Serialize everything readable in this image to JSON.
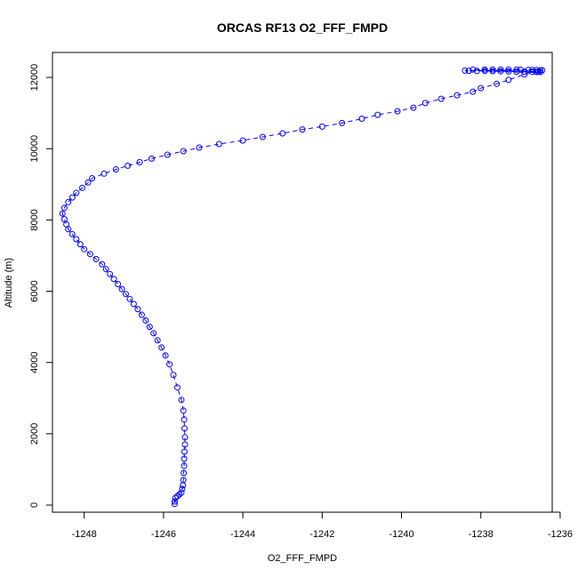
{
  "chart_data": {
    "type": "scatter",
    "title": "ORCAS RF13 O2_FFF_FMPD",
    "xlabel": "O2_FFF_FMPD",
    "ylabel": "Altitude (m)",
    "xlim": [
      -1248.8,
      -1236.2
    ],
    "ylim": [
      -200,
      12700
    ],
    "xticks": [
      -1248,
      -1246,
      -1244,
      -1242,
      -1240,
      -1238,
      -1236
    ],
    "xtick_labels": [
      "-1248",
      "-1246",
      "-1244",
      "-1242",
      "-1240",
      "-1238",
      "-1236"
    ],
    "yticks": [
      0,
      2000,
      4000,
      6000,
      8000,
      10000,
      12000
    ],
    "ytick_labels": [
      "0",
      "2000",
      "4000",
      "6000",
      "8000",
      "10000",
      "12000"
    ],
    "marker": "open-circle",
    "line_style": "dashed",
    "color": "#0000ff",
    "grid": false,
    "series": [
      {
        "x": [
          -1236.5,
          -1236.6,
          -1236.7,
          -1236.9,
          -1237.1,
          -1237.3,
          -1237.5,
          -1237.7,
          -1237.9,
          -1238.1,
          -1238.3,
          -1238.4,
          -1236.45,
          -1236.5,
          -1236.6,
          -1236.7,
          -1236.8,
          -1237.0,
          -1237.1,
          -1237.3,
          -1237.5,
          -1237.7,
          -1237.9,
          -1238.2,
          -1236.55,
          -1236.9,
          -1237.3,
          -1237.6,
          -1238.0,
          -1238.2,
          -1238.6,
          -1239.0,
          -1239.4,
          -1239.7,
          -1240.1,
          -1240.6,
          -1241.0,
          -1241.5,
          -1242.0,
          -1242.5,
          -1243.0,
          -1243.5,
          -1244.0,
          -1244.6,
          -1245.1,
          -1245.5,
          -1245.9,
          -1246.3,
          -1246.6,
          -1246.9,
          -1247.2,
          -1247.5,
          -1247.8,
          -1247.9,
          -1248.05,
          -1248.2,
          -1248.3,
          -1248.4,
          -1248.5,
          -1248.55,
          -1248.5,
          -1248.45,
          -1248.4,
          -1248.3,
          -1248.2,
          -1248.1,
          -1248.0,
          -1247.85,
          -1247.7,
          -1247.55,
          -1247.45,
          -1247.35,
          -1247.25,
          -1247.15,
          -1247.05,
          -1246.95,
          -1246.85,
          -1246.75,
          -1246.65,
          -1246.55,
          -1246.45,
          -1246.35,
          -1246.25,
          -1246.15,
          -1246.05,
          -1245.95,
          -1245.85,
          -1245.75,
          -1245.65,
          -1245.55,
          -1245.5,
          -1245.48,
          -1245.47,
          -1245.46,
          -1245.46,
          -1245.47,
          -1245.48,
          -1245.48,
          -1245.49,
          -1245.5,
          -1245.51,
          -1245.53,
          -1245.55,
          -1245.6,
          -1245.65,
          -1245.7,
          -1245.72,
          -1245.72
        ],
        "y": [
          12150,
          12150,
          12155,
          12160,
          12160,
          12165,
          12170,
          12175,
          12180,
          12180,
          12185,
          12190,
          12200,
          12200,
          12205,
          12210,
          12210,
          12215,
          12215,
          12220,
          12220,
          12220,
          12220,
          12220,
          12160,
          12080,
          11930,
          11820,
          11700,
          11600,
          11500,
          11400,
          11280,
          11150,
          11050,
          10950,
          10840,
          10720,
          10620,
          10540,
          10430,
          10330,
          10230,
          10130,
          10030,
          9930,
          9830,
          9720,
          9620,
          9520,
          9420,
          9300,
          9170,
          9050,
          8900,
          8760,
          8630,
          8500,
          8340,
          8180,
          8020,
          7880,
          7740,
          7600,
          7460,
          7320,
          7180,
          7040,
          6900,
          6760,
          6620,
          6480,
          6340,
          6200,
          6060,
          5920,
          5780,
          5640,
          5500,
          5340,
          5180,
          5000,
          4820,
          4620,
          4420,
          4200,
          3950,
          3650,
          3300,
          2950,
          2650,
          2400,
          2150,
          1900,
          1700,
          1500,
          1300,
          1100,
          900,
          700,
          550,
          450,
          350,
          300,
          250,
          200,
          100,
          30
        ]
      }
    ]
  }
}
